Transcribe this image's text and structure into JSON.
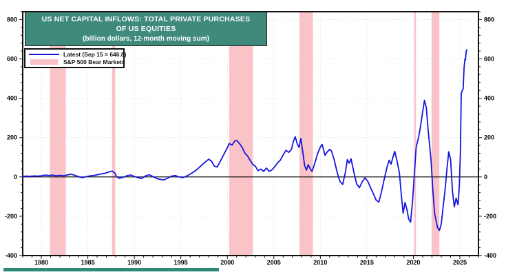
{
  "header": {
    "title_line1": "US NET CAPITAL INFLOWS: TOTAL PRIVATE PURCHASES",
    "title_line2": "OF US EQUITIES",
    "subtitle": "(billion dollars, 12-month moving sum)"
  },
  "legend": {
    "items": [
      {
        "label": "Latest (Sep 15 = 646.8)",
        "type": "line",
        "color": "#1414e0"
      },
      {
        "label": "S&P 500 Bear Markets",
        "type": "band",
        "color": "#f9c3c8"
      }
    ]
  },
  "colors": {
    "title_bg": "#3f8a7a",
    "footer_bar": "#2e8a78",
    "line": "#1414e0",
    "band": "#f9c3c8",
    "grid": "#dcdcdc",
    "axis": "#111111",
    "zero_line": "#000000",
    "tick_text": "#000000"
  },
  "chart_data": {
    "type": "line",
    "title": "US NET CAPITAL INFLOWS: TOTAL PRIVATE PURCHASES OF US EQUITIES",
    "subtitle": "(billion dollars, 12-month moving sum)",
    "xlabel": "",
    "ylabel": "billion dollars",
    "xlim": [
      1978,
      2027
    ],
    "ylim": [
      -400,
      840
    ],
    "grid": true,
    "legend_position": "top-left",
    "x_ticks_major": [
      1980,
      1985,
      1990,
      1995,
      2000,
      2005,
      2010,
      2015,
      2020,
      2025
    ],
    "x_tick_labels": [
      "1980",
      "1985",
      "1990",
      "1995",
      "2000",
      "2005",
      "2010",
      "2015",
      "2020",
      "2025"
    ],
    "y_ticks_major": [
      -400,
      -200,
      0,
      200,
      400,
      600,
      800
    ],
    "y_tick_labels": [
      "-400",
      "-200",
      "0",
      "200",
      "400",
      "600",
      "800"
    ],
    "x_minor_step": 1,
    "y_minor_step": 40,
    "zero_line": true,
    "bands": [
      {
        "label": "S&P 500 bear market 1980-82",
        "from": 1980.92,
        "to": 1982.63
      },
      {
        "label": "S&P 500 bear market 1987",
        "from": 1987.6,
        "to": 1987.95
      },
      {
        "label": "S&P 500 bear market 2000-02",
        "from": 2000.2,
        "to": 2002.75
      },
      {
        "label": "S&P 500 bear market 2007-09",
        "from": 2007.75,
        "to": 2009.2
      },
      {
        "label": "S&P 500 bear market 2020",
        "from": 2020.1,
        "to": 2020.28
      },
      {
        "label": "S&P 500 bear market 2022",
        "from": 2021.95,
        "to": 2022.8
      }
    ],
    "series": [
      {
        "name": "Latest (Sep 15 = 646.8)",
        "color": "#1414e0",
        "latest_label": "Sep 15",
        "latest_value": 646.8,
        "points": [
          [
            1978.0,
            2
          ],
          [
            1978.4,
            4
          ],
          [
            1978.8,
            3
          ],
          [
            1979.2,
            5
          ],
          [
            1979.6,
            4
          ],
          [
            1980.0,
            6
          ],
          [
            1980.4,
            9
          ],
          [
            1980.8,
            7
          ],
          [
            1981.2,
            9
          ],
          [
            1981.6,
            6
          ],
          [
            1982.0,
            8
          ],
          [
            1982.4,
            6
          ],
          [
            1982.8,
            10
          ],
          [
            1983.2,
            14
          ],
          [
            1983.6,
            8
          ],
          [
            1984.0,
            1
          ],
          [
            1984.4,
            -4
          ],
          [
            1984.8,
            1
          ],
          [
            1985.2,
            5
          ],
          [
            1985.6,
            7
          ],
          [
            1986.0,
            11
          ],
          [
            1986.4,
            15
          ],
          [
            1986.8,
            18
          ],
          [
            1987.2,
            24
          ],
          [
            1987.6,
            30
          ],
          [
            1987.9,
            20
          ],
          [
            1988.1,
            0
          ],
          [
            1988.4,
            -7
          ],
          [
            1988.8,
            -2
          ],
          [
            1989.2,
            6
          ],
          [
            1989.6,
            10
          ],
          [
            1990.0,
            2
          ],
          [
            1990.4,
            -4
          ],
          [
            1990.8,
            -8
          ],
          [
            1991.2,
            5
          ],
          [
            1991.6,
            11
          ],
          [
            1992.0,
            2
          ],
          [
            1992.4,
            -8
          ],
          [
            1992.8,
            -13
          ],
          [
            1993.2,
            -15
          ],
          [
            1993.6,
            -6
          ],
          [
            1994.0,
            4
          ],
          [
            1994.4,
            7
          ],
          [
            1994.8,
            0
          ],
          [
            1995.2,
            -4
          ],
          [
            1995.6,
            4
          ],
          [
            1996.0,
            14
          ],
          [
            1996.4,
            26
          ],
          [
            1996.8,
            40
          ],
          [
            1997.2,
            58
          ],
          [
            1997.6,
            75
          ],
          [
            1998.0,
            90
          ],
          [
            1998.3,
            80
          ],
          [
            1998.6,
            55
          ],
          [
            1998.9,
            50
          ],
          [
            1999.2,
            75
          ],
          [
            1999.6,
            112
          ],
          [
            2000.0,
            148
          ],
          [
            2000.2,
            170
          ],
          [
            2000.5,
            162
          ],
          [
            2000.8,
            182
          ],
          [
            2001.0,
            186
          ],
          [
            2001.3,
            170
          ],
          [
            2001.6,
            150
          ],
          [
            2001.9,
            120
          ],
          [
            2002.2,
            105
          ],
          [
            2002.5,
            80
          ],
          [
            2002.8,
            60
          ],
          [
            2003.0,
            55
          ],
          [
            2003.3,
            32
          ],
          [
            2003.6,
            40
          ],
          [
            2003.9,
            28
          ],
          [
            2004.2,
            45
          ],
          [
            2004.5,
            28
          ],
          [
            2004.8,
            36
          ],
          [
            2005.1,
            52
          ],
          [
            2005.4,
            72
          ],
          [
            2005.7,
            85
          ],
          [
            2006.0,
            112
          ],
          [
            2006.3,
            135
          ],
          [
            2006.6,
            125
          ],
          [
            2006.9,
            140
          ],
          [
            2007.1,
            180
          ],
          [
            2007.3,
            205
          ],
          [
            2007.5,
            170
          ],
          [
            2007.7,
            150
          ],
          [
            2007.9,
            195
          ],
          [
            2008.1,
            130
          ],
          [
            2008.3,
            60
          ],
          [
            2008.5,
            35
          ],
          [
            2008.7,
            62
          ],
          [
            2008.9,
            42
          ],
          [
            2009.1,
            28
          ],
          [
            2009.4,
            68
          ],
          [
            2009.7,
            118
          ],
          [
            2010.0,
            152
          ],
          [
            2010.2,
            165
          ],
          [
            2010.5,
            110
          ],
          [
            2010.7,
            125
          ],
          [
            2011.0,
            140
          ],
          [
            2011.2,
            132
          ],
          [
            2011.5,
            85
          ],
          [
            2011.8,
            25
          ],
          [
            2012.1,
            -22
          ],
          [
            2012.4,
            -38
          ],
          [
            2012.7,
            25
          ],
          [
            2012.9,
            88
          ],
          [
            2013.1,
            70
          ],
          [
            2013.3,
            92
          ],
          [
            2013.6,
            25
          ],
          [
            2013.9,
            -35
          ],
          [
            2014.2,
            -55
          ],
          [
            2014.5,
            -25
          ],
          [
            2014.8,
            -5
          ],
          [
            2015.1,
            -22
          ],
          [
            2015.4,
            -55
          ],
          [
            2015.7,
            -85
          ],
          [
            2016.0,
            -118
          ],
          [
            2016.3,
            -128
          ],
          [
            2016.6,
            -70
          ],
          [
            2016.9,
            -5
          ],
          [
            2017.2,
            55
          ],
          [
            2017.4,
            85
          ],
          [
            2017.6,
            65
          ],
          [
            2017.8,
            100
          ],
          [
            2018.0,
            130
          ],
          [
            2018.2,
            90
          ],
          [
            2018.5,
            20
          ],
          [
            2018.7,
            -90
          ],
          [
            2018.9,
            -185
          ],
          [
            2019.1,
            -130
          ],
          [
            2019.3,
            -165
          ],
          [
            2019.5,
            -215
          ],
          [
            2019.7,
            -230
          ],
          [
            2019.9,
            -130
          ],
          [
            2020.1,
            10
          ],
          [
            2020.3,
            150
          ],
          [
            2020.6,
            210
          ],
          [
            2020.8,
            265
          ],
          [
            2021.0,
            330
          ],
          [
            2021.2,
            390
          ],
          [
            2021.4,
            350
          ],
          [
            2021.6,
            235
          ],
          [
            2021.9,
            85
          ],
          [
            2022.1,
            -70
          ],
          [
            2022.3,
            -190
          ],
          [
            2022.6,
            -258
          ],
          [
            2022.8,
            -272
          ],
          [
            2023.0,
            -240
          ],
          [
            2023.2,
            -150
          ],
          [
            2023.4,
            -70
          ],
          [
            2023.6,
            35
          ],
          [
            2023.8,
            128
          ],
          [
            2024.0,
            90
          ],
          [
            2024.2,
            -70
          ],
          [
            2024.4,
            -152
          ],
          [
            2024.6,
            -108
          ],
          [
            2024.8,
            -142
          ],
          [
            2024.95,
            -40
          ],
          [
            2025.05,
            120
          ],
          [
            2025.1,
            250
          ],
          [
            2025.15,
            420
          ],
          [
            2025.25,
            440
          ],
          [
            2025.35,
            445
          ],
          [
            2025.45,
            555
          ],
          [
            2025.55,
            600
          ],
          [
            2025.6,
            595
          ],
          [
            2025.68,
            638
          ],
          [
            2025.75,
            646.8
          ]
        ]
      }
    ]
  }
}
